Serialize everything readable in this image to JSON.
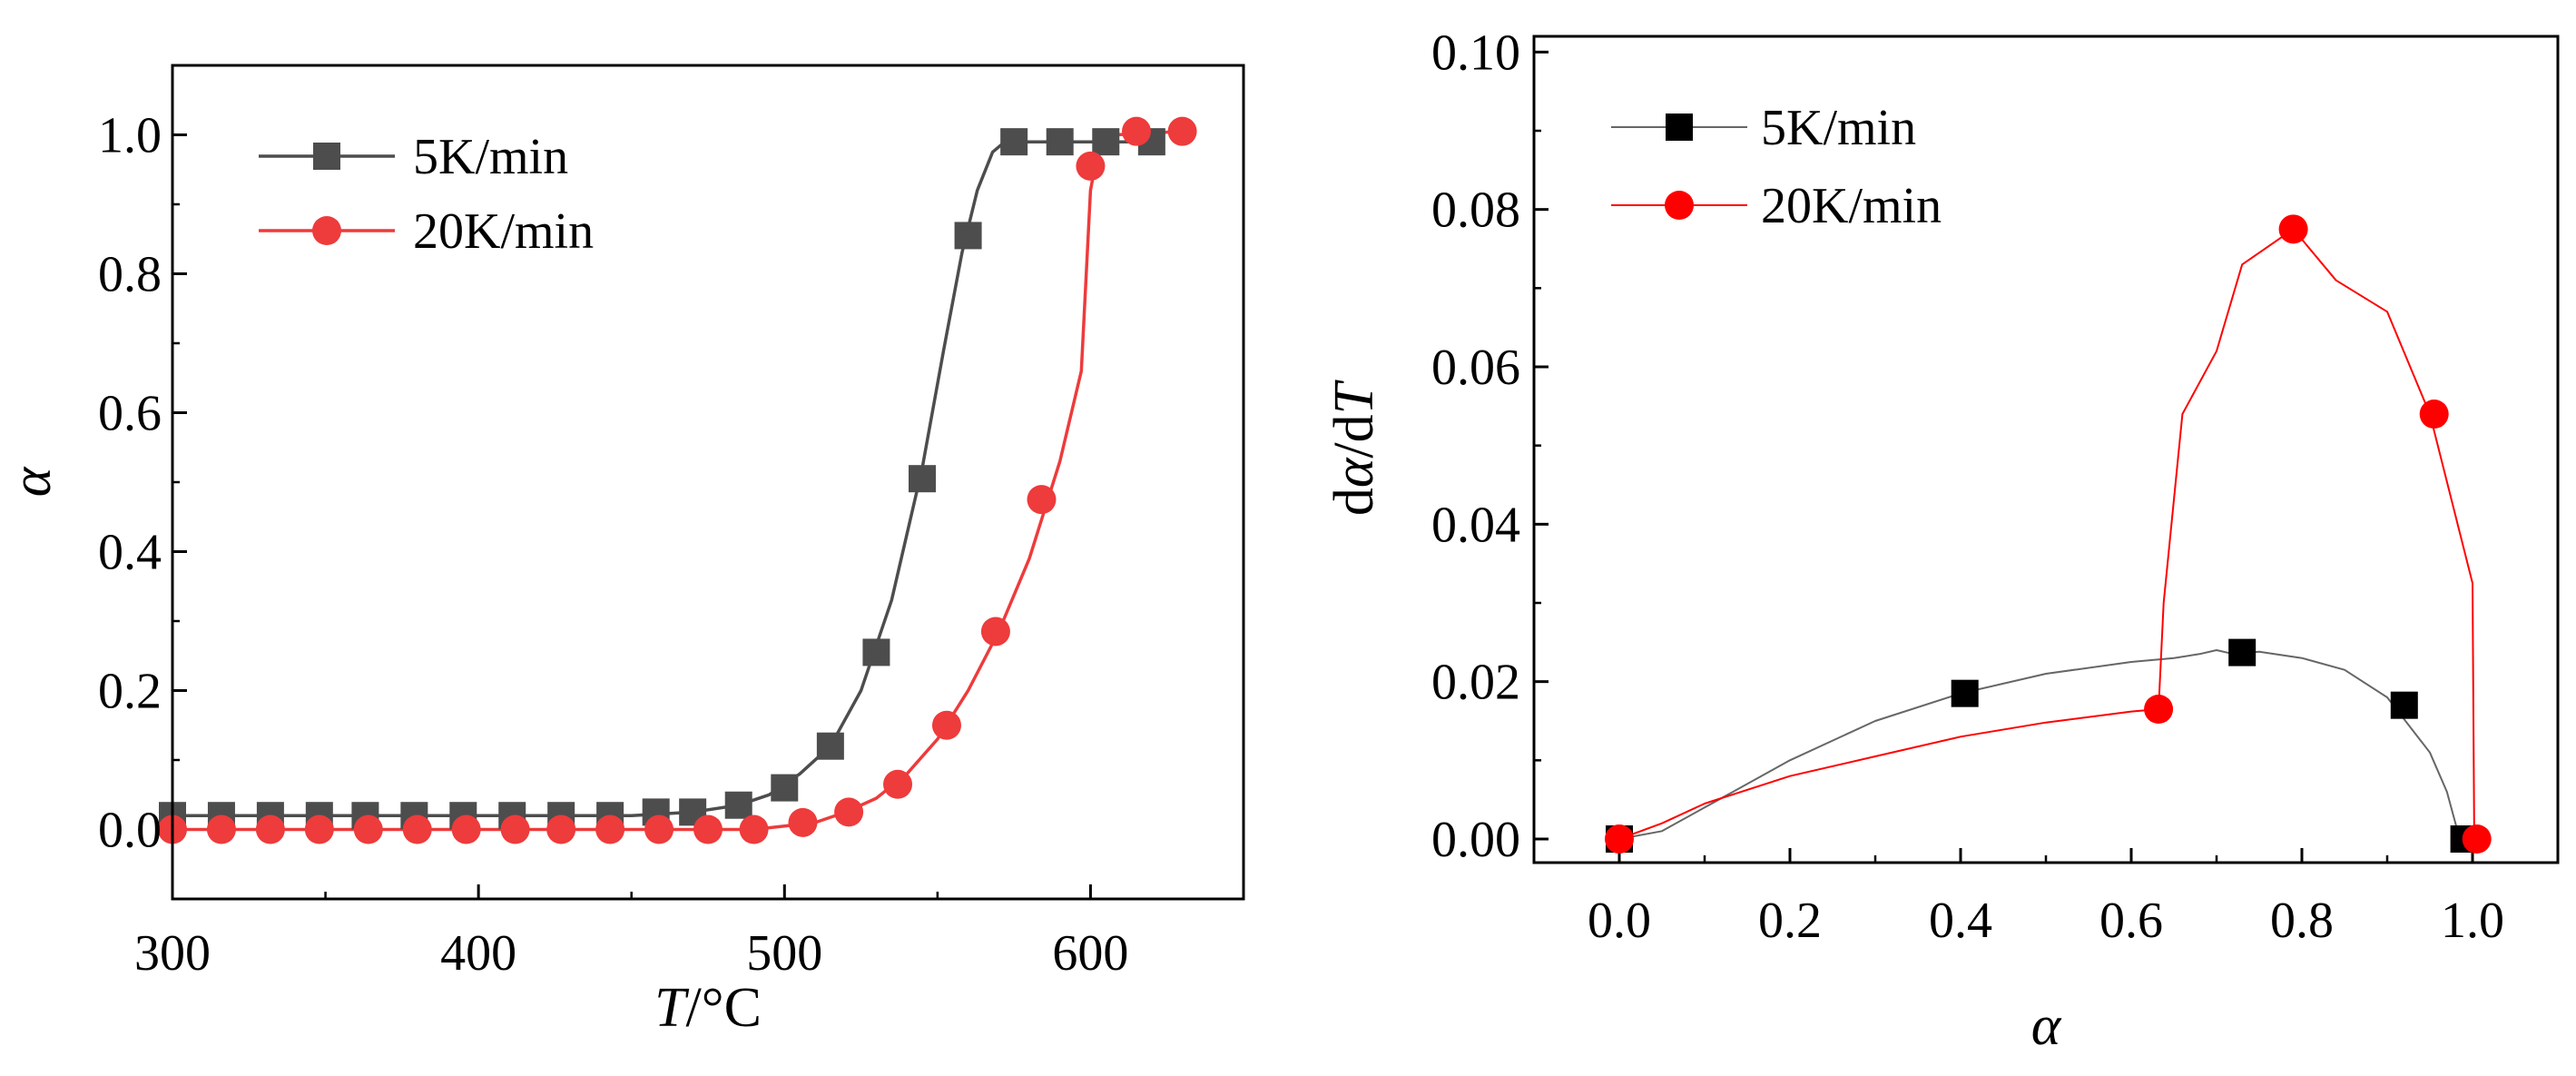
{
  "chart_data": [
    {
      "type": "line",
      "title": "",
      "xlabel_main": "T",
      "xlabel_unit": "/°C",
      "ylabel": "α",
      "xlim": [
        300,
        650
      ],
      "ylim": [
        -0.1,
        1.1
      ],
      "xticks": [
        300,
        400,
        500,
        600
      ],
      "xtick_labels": [
        "300",
        "400",
        "500",
        "600"
      ],
      "yticks": [
        0.0,
        0.2,
        0.4,
        0.6,
        0.8,
        1.0
      ],
      "ytick_labels": [
        "0.0",
        "0.2",
        "0.4",
        "0.6",
        "0.8",
        "1.0"
      ],
      "legend_position": "top-left",
      "series": [
        {
          "name": "5K/min",
          "color": "#4d4d4d",
          "marker": "square",
          "curve": [
            [
              300,
              0.02
            ],
            [
              450,
              0.02
            ],
            [
              470,
              0.025
            ],
            [
              485,
              0.035
            ],
            [
              495,
              0.05
            ],
            [
              505,
              0.08
            ],
            [
              515,
              0.12
            ],
            [
              525,
              0.2
            ],
            [
              535,
              0.33
            ],
            [
              545,
              0.52
            ],
            [
              552,
              0.69
            ],
            [
              558,
              0.83
            ],
            [
              563,
              0.92
            ],
            [
              568,
              0.975
            ],
            [
              572,
              0.99
            ],
            [
              620,
              0.99
            ]
          ],
          "markers": [
            [
              300,
              0.02
            ],
            [
              316,
              0.02
            ],
            [
              332,
              0.02
            ],
            [
              348,
              0.02
            ],
            [
              363,
              0.02
            ],
            [
              379,
              0.02
            ],
            [
              395,
              0.02
            ],
            [
              411,
              0.02
            ],
            [
              427,
              0.02
            ],
            [
              443,
              0.02
            ],
            [
              458,
              0.025
            ],
            [
              470,
              0.025
            ],
            [
              485,
              0.035
            ],
            [
              500,
              0.06
            ],
            [
              515,
              0.12
            ],
            [
              530,
              0.255
            ],
            [
              545,
              0.505
            ],
            [
              560,
              0.855
            ],
            [
              575,
              0.99
            ],
            [
              590,
              0.99
            ],
            [
              605,
              0.99
            ],
            [
              620,
              0.99
            ]
          ]
        },
        {
          "name": "20K/min",
          "color": "#ee3b3b",
          "marker": "circle",
          "curve": [
            [
              300,
              0.0
            ],
            [
              490,
              0.0
            ],
            [
              500,
              0.005
            ],
            [
              510,
              0.01
            ],
            [
              520,
              0.025
            ],
            [
              530,
              0.045
            ],
            [
              540,
              0.08
            ],
            [
              550,
              0.13
            ],
            [
              560,
              0.2
            ],
            [
              570,
              0.285
            ],
            [
              580,
              0.39
            ],
            [
              590,
              0.53
            ],
            [
              597,
              0.66
            ],
            [
              600,
              0.92
            ],
            [
              603,
              0.99
            ],
            [
              608,
              1.0
            ],
            [
              630,
              1.005
            ]
          ],
          "markers": [
            [
              300,
              0.0
            ],
            [
              316,
              0.0
            ],
            [
              332,
              0.0
            ],
            [
              348,
              0.0
            ],
            [
              364,
              0.0
            ],
            [
              380,
              0.0
            ],
            [
              396,
              0.0
            ],
            [
              412,
              0.0
            ],
            [
              427,
              0.0
            ],
            [
              443,
              0.0
            ],
            [
              459,
              0.0
            ],
            [
              475,
              0.0
            ],
            [
              490,
              0.0
            ],
            [
              506,
              0.01
            ],
            [
              521,
              0.025
            ],
            [
              537,
              0.065
            ],
            [
              553,
              0.15
            ],
            [
              569,
              0.285
            ],
            [
              584,
              0.475
            ],
            [
              600,
              0.955
            ],
            [
              615,
              1.005
            ],
            [
              630,
              1.005
            ]
          ]
        }
      ]
    },
    {
      "type": "line",
      "title": "",
      "xlabel": "α",
      "ylabel_prefix": "d",
      "ylabel_mid": "α",
      "ylabel_mid2": "/d",
      "ylabel_end": "T",
      "xlim": [
        -0.1,
        1.1
      ],
      "ylim": [
        -0.003,
        0.102
      ],
      "xticks": [
        0.0,
        0.2,
        0.4,
        0.6,
        0.8,
        1.0
      ],
      "xtick_labels": [
        "0.0",
        "0.2",
        "0.4",
        "0.6",
        "0.8",
        "1.0"
      ],
      "yticks": [
        0.0,
        0.02,
        0.04,
        0.06,
        0.08,
        0.1
      ],
      "ytick_labels": [
        "0.00",
        "0.02",
        "0.04",
        "0.06",
        "0.08",
        "0.10"
      ],
      "legend_position": "top-left",
      "series": [
        {
          "name": "5K/min",
          "color": "#000000",
          "line_color": "#666666",
          "marker": "square",
          "curve": [
            [
              0.0,
              0.0
            ],
            [
              0.05,
              0.001
            ],
            [
              0.1,
              0.004
            ],
            [
              0.2,
              0.01
            ],
            [
              0.3,
              0.015
            ],
            [
              0.4,
              0.0185
            ],
            [
              0.5,
              0.021
            ],
            [
              0.6,
              0.0225
            ],
            [
              0.65,
              0.023
            ],
            [
              0.68,
              0.0235
            ],
            [
              0.7,
              0.024
            ],
            [
              0.72,
              0.0235
            ],
            [
              0.75,
              0.0238
            ],
            [
              0.8,
              0.023
            ],
            [
              0.85,
              0.0215
            ],
            [
              0.9,
              0.018
            ],
            [
              0.95,
              0.011
            ],
            [
              0.97,
              0.006
            ],
            [
              0.985,
              0.0
            ]
          ],
          "markers": [
            [
              0.0,
              0.0
            ],
            [
              0.405,
              0.0185
            ],
            [
              0.73,
              0.0237
            ],
            [
              0.92,
              0.017
            ],
            [
              0.99,
              0.0
            ]
          ]
        },
        {
          "name": "20K/min",
          "color": "#ff0000",
          "line_color": "#ff0000",
          "marker": "circle",
          "curve": [
            [
              0.0,
              0.0
            ],
            [
              0.05,
              0.002
            ],
            [
              0.1,
              0.0045
            ],
            [
              0.2,
              0.008
            ],
            [
              0.3,
              0.0105
            ],
            [
              0.4,
              0.013
            ],
            [
              0.5,
              0.0148
            ],
            [
              0.6,
              0.0162
            ],
            [
              0.632,
              0.0165
            ],
            [
              0.638,
              0.03
            ],
            [
              0.66,
              0.054
            ],
            [
              0.7,
              0.062
            ],
            [
              0.73,
              0.073
            ],
            [
              0.79,
              0.0775
            ],
            [
              0.84,
              0.071
            ],
            [
              0.9,
              0.067
            ],
            [
              0.95,
              0.054
            ],
            [
              1.0,
              0.0325
            ],
            [
              1.002,
              0.0
            ]
          ],
          "markers": [
            [
              0.0,
              0.0
            ],
            [
              0.632,
              0.0165
            ],
            [
              0.79,
              0.0775
            ],
            [
              0.955,
              0.054
            ],
            [
              1.005,
              0.0
            ]
          ]
        }
      ]
    }
  ]
}
